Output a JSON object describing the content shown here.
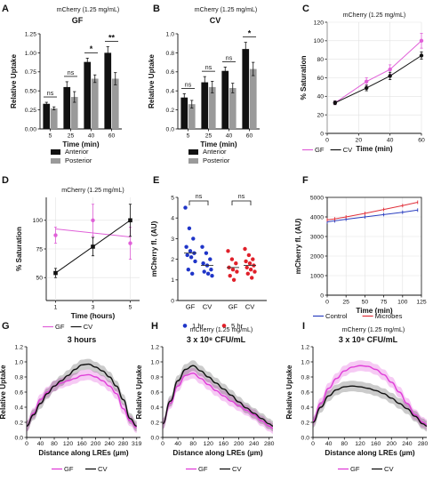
{
  "chart_data": [
    {
      "panel": "A",
      "type": "bar",
      "title": "mCherry (1.25 mg/mL)",
      "subtitle": "GF",
      "xlabel": "Time (min)",
      "ylabel": "Relative Uptake",
      "categories": [
        "5",
        "25",
        "40",
        "60"
      ],
      "ylim": [
        0,
        1.25
      ],
      "yticks": [
        "0.00",
        "0.25",
        "0.50",
        "0.75",
        "1.00",
        "1.25"
      ],
      "series": [
        {
          "name": "Anterior",
          "color": "#111111",
          "values": [
            0.33,
            0.55,
            0.88,
            1.0
          ],
          "errors": [
            0.02,
            0.07,
            0.05,
            0.08
          ]
        },
        {
          "name": "Posterior",
          "color": "#9a9a9a",
          "values": [
            0.27,
            0.42,
            0.66,
            0.66
          ],
          "errors": [
            0.02,
            0.07,
            0.05,
            0.08
          ]
        }
      ],
      "significance": [
        "ns",
        "ns",
        "*",
        "**"
      ]
    },
    {
      "panel": "B",
      "type": "bar",
      "title": "mCherry (1.25 mg/mL)",
      "subtitle": "CV",
      "xlabel": "Time (min)",
      "ylabel": "Relative Uptake",
      "categories": [
        "5",
        "25",
        "40",
        "60"
      ],
      "ylim": [
        0,
        1.0
      ],
      "yticks": [
        "0.0",
        "0.2",
        "0.4",
        "0.6",
        "0.8",
        "1.0"
      ],
      "series": [
        {
          "name": "Anterior",
          "color": "#111111",
          "values": [
            0.33,
            0.49,
            0.61,
            0.84
          ],
          "errors": [
            0.04,
            0.06,
            0.04,
            0.07
          ]
        },
        {
          "name": "Posterior",
          "color": "#9a9a9a",
          "values": [
            0.26,
            0.44,
            0.43,
            0.63
          ],
          "errors": [
            0.04,
            0.06,
            0.05,
            0.07
          ]
        }
      ],
      "significance": [
        "ns",
        "ns",
        "ns",
        "*"
      ]
    },
    {
      "panel": "C",
      "type": "line",
      "title": "mCherry (1.25 mg/mL)",
      "xlabel": "Time (min)",
      "ylabel": "% Saturation",
      "xlim": [
        0,
        60
      ],
      "xticks": [
        "0",
        "20",
        "40",
        "60"
      ],
      "ylim": [
        0,
        120
      ],
      "yticks": [
        "0",
        "20",
        "40",
        "60",
        "80",
        "100",
        "120"
      ],
      "grid": true,
      "series": [
        {
          "name": "GF",
          "color": "#e060d8",
          "x": [
            5,
            25,
            40,
            60
          ],
          "y": [
            33,
            56,
            69,
            100
          ],
          "errors": [
            2,
            4,
            5,
            8
          ]
        },
        {
          "name": "CV",
          "color": "#111111",
          "x": [
            5,
            25,
            40,
            60
          ],
          "y": [
            33,
            49,
            62,
            84
          ],
          "errors": [
            2,
            3,
            4,
            4
          ]
        }
      ]
    },
    {
      "panel": "D",
      "type": "line",
      "title": "mCherry (1.25 mg/mL)",
      "xlabel": "Time (hours)",
      "ylabel": "% Saturation",
      "xlim": [
        0.5,
        5.5
      ],
      "xticks": [
        "1",
        "3",
        "5"
      ],
      "ylim": [
        30,
        120
      ],
      "yticks": [
        "50",
        "75",
        "100"
      ],
      "grid": true,
      "series": [
        {
          "name": "GF",
          "color": "#e060d8",
          "x": [
            1,
            3,
            5
          ],
          "y": [
            87,
            100,
            80
          ],
          "errors": [
            7,
            14,
            14
          ]
        },
        {
          "name": "CV",
          "color": "#111111",
          "x": [
            1,
            3,
            5
          ],
          "y": [
            54,
            77,
            100
          ],
          "errors": [
            4,
            8,
            14
          ]
        }
      ]
    },
    {
      "panel": "E",
      "type": "scatter",
      "xlabel": "",
      "ylabel": "mCherry fl. (AU)",
      "ylim": [
        0,
        5
      ],
      "yticks": [
        "0",
        "1",
        "2",
        "3",
        "4",
        "5"
      ],
      "categories": [
        "GF",
        "CV",
        "GF",
        "CV"
      ],
      "groups": [
        {
          "name": "1 hr",
          "color": "#1f35c8",
          "GF": [
            4.5,
            3.5,
            3.0,
            2.6,
            2.4,
            2.3,
            2.2,
            2.1,
            1.9,
            1.5,
            1.3
          ],
          "CV": [
            2.6,
            2.3,
            2.0,
            1.8,
            1.7,
            1.5,
            1.4,
            1.3,
            1.2
          ]
        },
        {
          "name": "5 hr",
          "color": "#e0202a",
          "GF": [
            2.4,
            2.0,
            1.8,
            1.6,
            1.5,
            1.4,
            1.2,
            1.0
          ],
          "CV": [
            2.5,
            2.2,
            2.0,
            1.9,
            1.8,
            1.7,
            1.6,
            1.5,
            1.4,
            1.3,
            1.1
          ]
        }
      ],
      "medians": [
        2.3,
        1.7,
        1.6,
        1.7
      ],
      "significance": [
        "ns",
        "ns"
      ]
    },
    {
      "panel": "F",
      "type": "line",
      "xlabel": "Time (min)",
      "ylabel": "mCherry fl. (AU)",
      "xlim": [
        0,
        125
      ],
      "xticks": [
        "0",
        "25",
        "50",
        "75",
        "100",
        "125"
      ],
      "ylim": [
        0,
        5000
      ],
      "yticks": [
        "0",
        "1000",
        "2000",
        "3000",
        "4000",
        "5000"
      ],
      "grid": true,
      "series": [
        {
          "name": "Control",
          "color": "#2b3fc0",
          "x": [
            0,
            10,
            25,
            50,
            75,
            100,
            120
          ],
          "y": [
            3750,
            3800,
            3880,
            4000,
            4120,
            4240,
            4350
          ]
        },
        {
          "name": "Microbes",
          "color": "#e0303a",
          "x": [
            0,
            10,
            25,
            50,
            75,
            100,
            120
          ],
          "y": [
            3850,
            3900,
            4000,
            4180,
            4380,
            4580,
            4750
          ]
        }
      ]
    },
    {
      "panel": "G",
      "type": "line",
      "subtitle": "3 hours",
      "xlabel": "Distance along LREs (µm)",
      "ylabel": "Relative Uptake",
      "xlim": [
        0,
        330
      ],
      "xticks": [
        "0",
        "40",
        "80",
        "120",
        "160",
        "200",
        "240",
        "280",
        "319"
      ],
      "ylim": [
        0,
        1.2
      ],
      "yticks": [
        "0.0",
        "0.2",
        "0.4",
        "0.6",
        "0.8",
        "1.0",
        "1.2"
      ],
      "series": [
        {
          "name": "GF",
          "color": "#e040d8",
          "x": [
            0,
            20,
            40,
            60,
            80,
            100,
            120,
            140,
            160,
            180,
            200,
            220,
            240,
            260,
            280,
            300,
            319
          ],
          "y": [
            0.15,
            0.32,
            0.5,
            0.6,
            0.68,
            0.72,
            0.75,
            0.78,
            0.82,
            0.83,
            0.8,
            0.75,
            0.68,
            0.58,
            0.38,
            0.22,
            0.13
          ]
        },
        {
          "name": "CV",
          "color": "#111111",
          "x": [
            0,
            20,
            40,
            60,
            80,
            100,
            120,
            140,
            160,
            180,
            200,
            220,
            240,
            260,
            280,
            300,
            319
          ],
          "y": [
            0.15,
            0.3,
            0.45,
            0.58,
            0.68,
            0.75,
            0.82,
            0.9,
            0.96,
            0.97,
            0.93,
            0.88,
            0.8,
            0.68,
            0.5,
            0.25,
            0.15
          ]
        }
      ]
    },
    {
      "panel": "H",
      "type": "line",
      "title": "mCherry (1.25 mg/mL)",
      "subtitle": "3 x 10⁸ CFU/mL",
      "xlabel": "Distance along LREs (µm)",
      "ylabel": "Relative Uptake",
      "xlim": [
        0,
        290
      ],
      "xticks": [
        "0",
        "40",
        "80",
        "120",
        "160",
        "200",
        "240",
        "280"
      ],
      "ylim": [
        0,
        1.2
      ],
      "yticks": [
        "0.0",
        "0.2",
        "0.4",
        "0.6",
        "0.8",
        "1.0",
        "1.2"
      ],
      "series": [
        {
          "name": "GF",
          "color": "#e040d8",
          "x": [
            0,
            20,
            40,
            60,
            80,
            100,
            120,
            140,
            160,
            180,
            200,
            220,
            240,
            260,
            280,
            290
          ],
          "y": [
            0.18,
            0.45,
            0.68,
            0.82,
            0.85,
            0.78,
            0.7,
            0.62,
            0.55,
            0.48,
            0.42,
            0.36,
            0.3,
            0.22,
            0.15,
            0.12
          ]
        },
        {
          "name": "CV",
          "color": "#111111",
          "x": [
            0,
            20,
            40,
            60,
            80,
            100,
            120,
            140,
            160,
            180,
            200,
            220,
            240,
            260,
            280,
            290
          ],
          "y": [
            0.18,
            0.48,
            0.75,
            0.9,
            0.95,
            0.88,
            0.8,
            0.72,
            0.64,
            0.56,
            0.47,
            0.39,
            0.32,
            0.25,
            0.18,
            0.15
          ]
        }
      ]
    },
    {
      "panel": "I",
      "type": "line",
      "title": "mCherry (1.25 mg/mL)",
      "subtitle": "3 x 10⁸ CFU/mL",
      "xlabel": "Distance along LREs (µm)",
      "ylabel": "Relative Uptake",
      "xlim": [
        0,
        290
      ],
      "xticks": [
        "0",
        "40",
        "80",
        "120",
        "160",
        "200",
        "240",
        "280"
      ],
      "ylim": [
        0,
        1.2
      ],
      "yticks": [
        "0.0",
        "0.2",
        "0.4",
        "0.6",
        "0.8",
        "1.0",
        "1.2"
      ],
      "series": [
        {
          "name": "GF",
          "color": "#e040d8",
          "x": [
            0,
            20,
            40,
            60,
            80,
            100,
            120,
            140,
            160,
            180,
            200,
            220,
            240,
            260,
            280,
            290
          ],
          "y": [
            0.22,
            0.45,
            0.65,
            0.78,
            0.88,
            0.93,
            0.95,
            0.94,
            0.9,
            0.83,
            0.73,
            0.6,
            0.45,
            0.3,
            0.2,
            0.17
          ]
        },
        {
          "name": "CV",
          "color": "#111111",
          "x": [
            0,
            20,
            40,
            60,
            80,
            100,
            120,
            140,
            160,
            180,
            200,
            220,
            240,
            260,
            280,
            290
          ],
          "y": [
            0.2,
            0.4,
            0.55,
            0.63,
            0.67,
            0.68,
            0.67,
            0.65,
            0.62,
            0.58,
            0.52,
            0.45,
            0.38,
            0.28,
            0.18,
            0.15
          ]
        }
      ]
    }
  ]
}
